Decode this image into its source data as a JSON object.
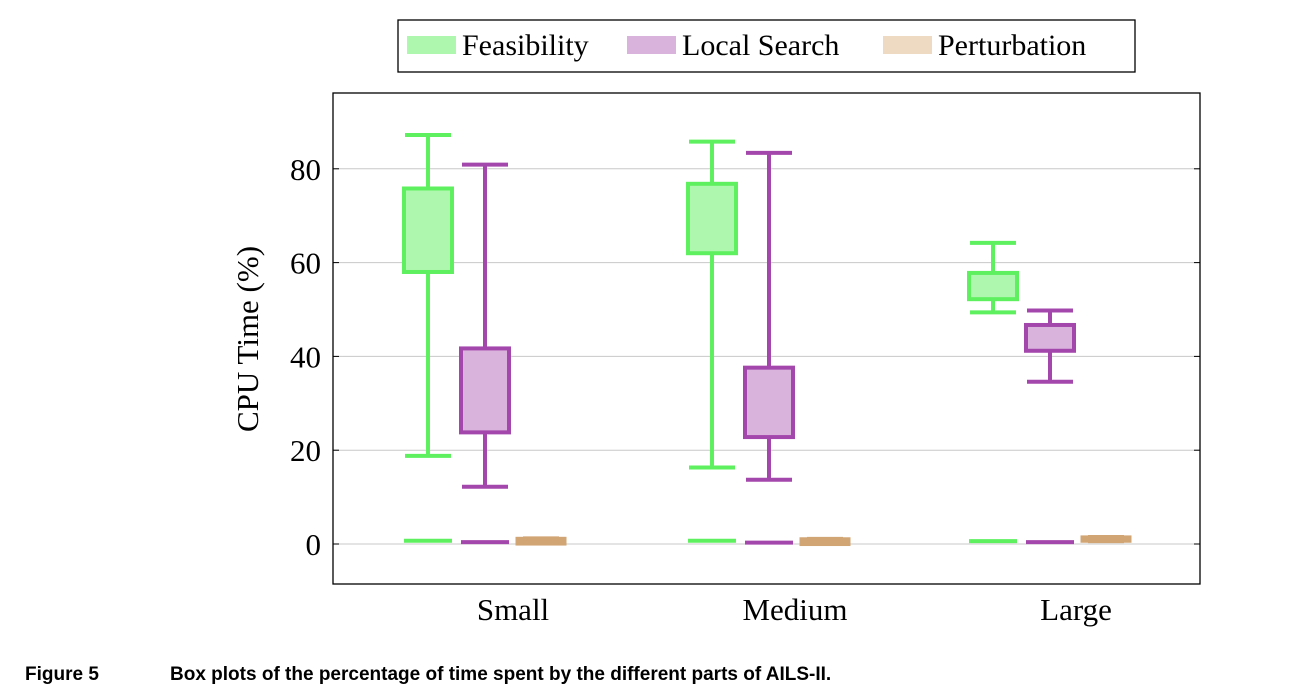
{
  "chart_data": {
    "type": "box",
    "categories": [
      "Small",
      "Medium",
      "Large"
    ],
    "ylabel": "CPU Time (%)",
    "xlabel": "",
    "ylim": [
      -8.5,
      96.5
    ],
    "yticks": [
      0,
      20,
      40,
      60,
      80
    ],
    "grid": "horizontal",
    "legend_position": "top-center",
    "series": [
      {
        "name": "Feasibility",
        "stroke": "#5ef05e",
        "fill": "#aef7ae",
        "boxes": [
          {
            "min": 18.8,
            "q1": 58.0,
            "median": 58.0,
            "q3": 75.8,
            "max": 87.2
          },
          {
            "min": 16.3,
            "q1": 62.0,
            "median": 62.0,
            "q3": 76.8,
            "max": 85.8
          },
          {
            "min": 49.4,
            "q1": 52.2,
            "median": 52.2,
            "q3": 57.8,
            "max": 64.2
          }
        ],
        "outlier_line": [
          0.7,
          0.7,
          0.6
        ]
      },
      {
        "name": "Local Search",
        "stroke": "#a447ac",
        "fill": "#dab3dd",
        "boxes": [
          {
            "min": 12.2,
            "q1": 23.8,
            "median": 23.8,
            "q3": 41.7,
            "max": 80.9
          },
          {
            "min": 13.7,
            "q1": 22.8,
            "median": 22.8,
            "q3": 37.6,
            "max": 83.4
          },
          {
            "min": 34.6,
            "q1": 41.2,
            "median": 41.2,
            "q3": 46.7,
            "max": 49.8
          }
        ],
        "outlier_line": [
          0.4,
          0.3,
          0.4
        ]
      },
      {
        "name": "Perturbation",
        "stroke": "#d2a574",
        "fill": "#eedac3",
        "boxes": [
          {
            "min": 0.1,
            "q1": 0.2,
            "median": 0.5,
            "q3": 1.0,
            "max": 1.2
          },
          {
            "min": 0.1,
            "q1": 0.1,
            "median": 0.4,
            "q3": 0.9,
            "max": 1.1
          },
          {
            "min": 0.6,
            "q1": 0.8,
            "median": 1.0,
            "q3": 1.3,
            "max": 1.5
          }
        ],
        "outlier_line": [
          null,
          null,
          null
        ]
      }
    ]
  },
  "caption": {
    "label": "Figure 5",
    "text": "Box plots of the percentage of time spent by the different parts of AILS-II."
  }
}
